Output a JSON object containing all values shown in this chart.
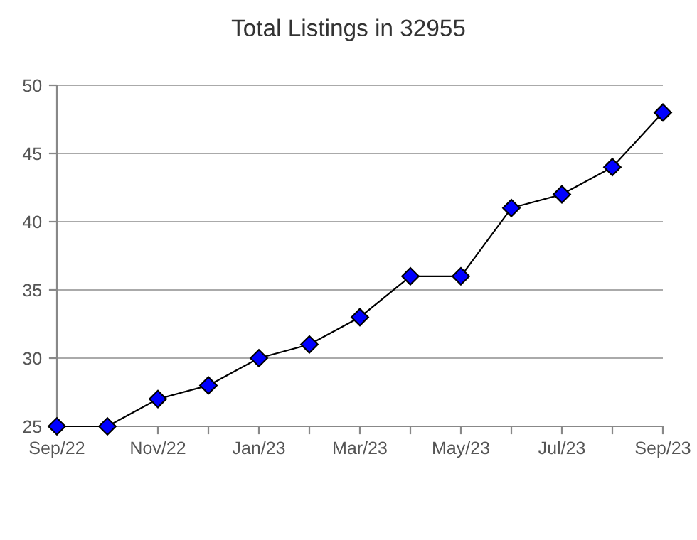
{
  "chart_data": {
    "type": "line",
    "title": "Total Listings in 32955",
    "categories": [
      "Sep/22",
      null,
      "Nov/22",
      null,
      "Jan/23",
      null,
      "Mar/23",
      null,
      "May/23",
      null,
      "Jul/23",
      null,
      "Sep/23"
    ],
    "series": [
      {
        "color": "#0000ff",
        "values": [
          25,
          25,
          27,
          28,
          30,
          31,
          33,
          36,
          36,
          41,
          42,
          44,
          48
        ]
      }
    ],
    "ylim": [
      25,
      50
    ],
    "yticks": [
      25,
      30,
      35,
      40,
      45,
      50
    ],
    "grid": "y",
    "marker": "diamond",
    "line_style": "solid"
  }
}
